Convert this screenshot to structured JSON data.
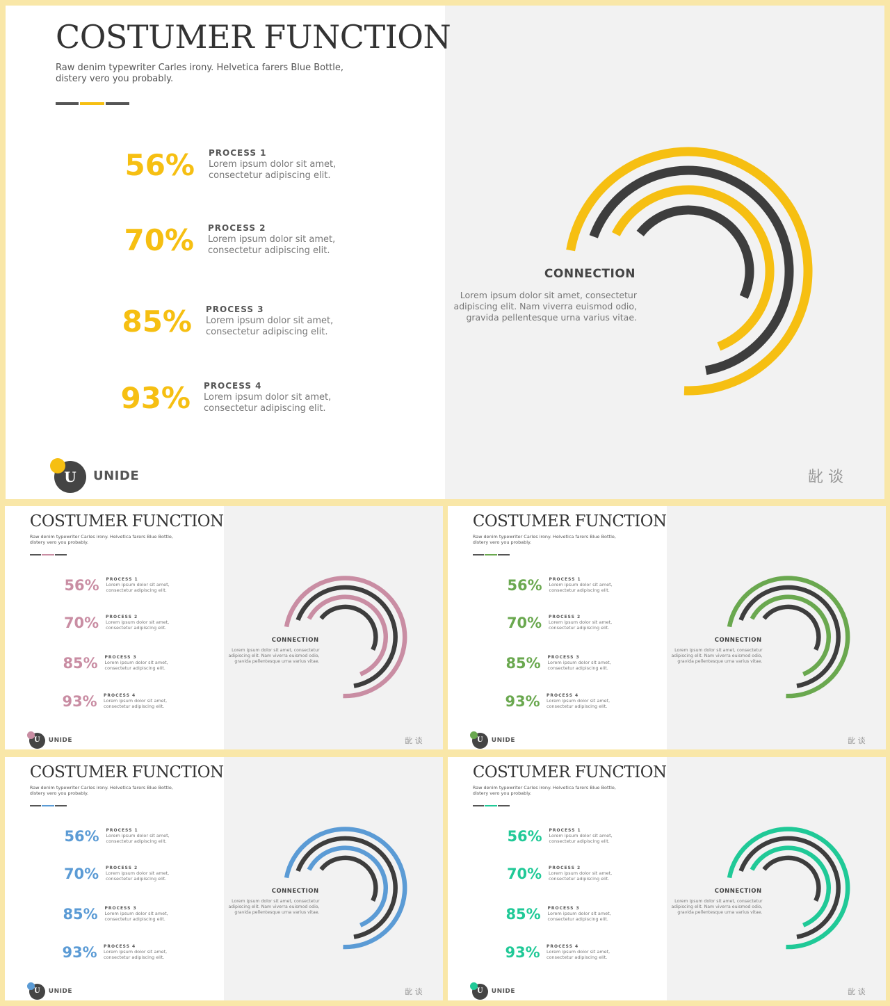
{
  "title": "COSTUMER FUNCTION",
  "subtitle_line1": "Raw denim typewriter Carles irony. Helvetica farers Blue Bottle,",
  "subtitle_line2": "distery vero you probably.",
  "processes": [
    {
      "percent": "56%",
      "label": "PROCESS 1",
      "line1": "Lorem ipsum dolor sit amet,",
      "line2": "consectetur adipiscing elit."
    },
    {
      "percent": "70%",
      "label": "PROCESS 2",
      "line1": "Lorem ipsum dolor sit amet,",
      "line2": "consectetur adipiscing elit."
    },
    {
      "percent": "85%",
      "label": "PROCESS 3",
      "line1": "Lorem ipsum dolor sit amet,",
      "line2": "consectetur adipiscing elit."
    },
    {
      "percent": "93%",
      "label": "PROCESS 4",
      "line1": "Lorem ipsum dolor sit amet,",
      "line2": "consectetur adipiscing elit."
    }
  ],
  "connection": {
    "title": "CONNECTION",
    "line1": "Lorem ipsum dolor sit amet, consectetur",
    "line2": "adipiscing elit. Nam viverra euismod odio,",
    "line3": "gravida pellentesque urna varius vitae."
  },
  "brand": {
    "name": "UNIDE",
    "letter": "U"
  },
  "chinese_mark": "龀 谈",
  "variants": [
    {
      "id": "big",
      "accent": "#f6bf12"
    },
    {
      "id": "s1",
      "accent": "#c98da3"
    },
    {
      "id": "s2",
      "accent": "#6aa84f"
    },
    {
      "id": "s3",
      "accent": "#5b9bd5"
    },
    {
      "id": "s4",
      "accent": "#20c997"
    }
  ],
  "dark_color": "#3d3d3d"
}
